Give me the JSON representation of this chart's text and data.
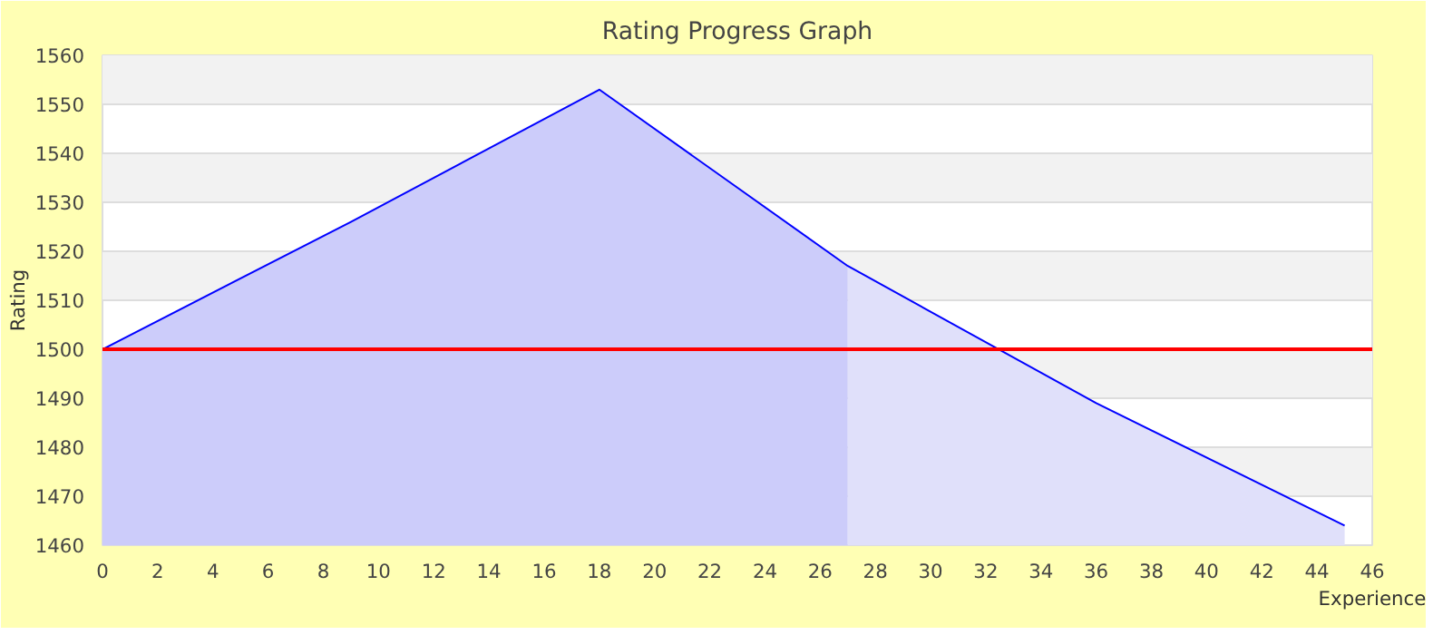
{
  "chart_data": {
    "type": "area",
    "title": "Rating Progress Graph",
    "xlabel": "Experience",
    "ylabel": "Rating",
    "series": [
      {
        "color": "#ccccfa",
        "x": [
          0,
          9,
          18,
          27
        ],
        "values": [
          1500,
          1526,
          1553,
          1517
        ]
      },
      {
        "color": "#e0e0fa",
        "x": [
          27,
          36,
          45
        ],
        "values": [
          1517,
          1489,
          1464
        ]
      },
      {
        "type": "line",
        "color": "#0000ff",
        "x": [
          0,
          9,
          18,
          27,
          36,
          45
        ],
        "values": [
          1500,
          1526,
          1553,
          1517,
          1489,
          1464
        ]
      }
    ],
    "xlim": [
      0,
      46
    ],
    "xticks": [
      0,
      2,
      4,
      6,
      8,
      10,
      12,
      14,
      16,
      18,
      20,
      22,
      24,
      26,
      28,
      30,
      32,
      34,
      36,
      38,
      40,
      42,
      44,
      46
    ],
    "ylim": [
      1460,
      1560
    ],
    "yticks": [
      1460,
      1470,
      1480,
      1490,
      1500,
      1510,
      1520,
      1530,
      1540,
      1550,
      1560
    ],
    "grid": "y",
    "ref_lines": [
      {
        "axis": "y",
        "value": 1500,
        "color": "#ff0000"
      }
    ]
  }
}
